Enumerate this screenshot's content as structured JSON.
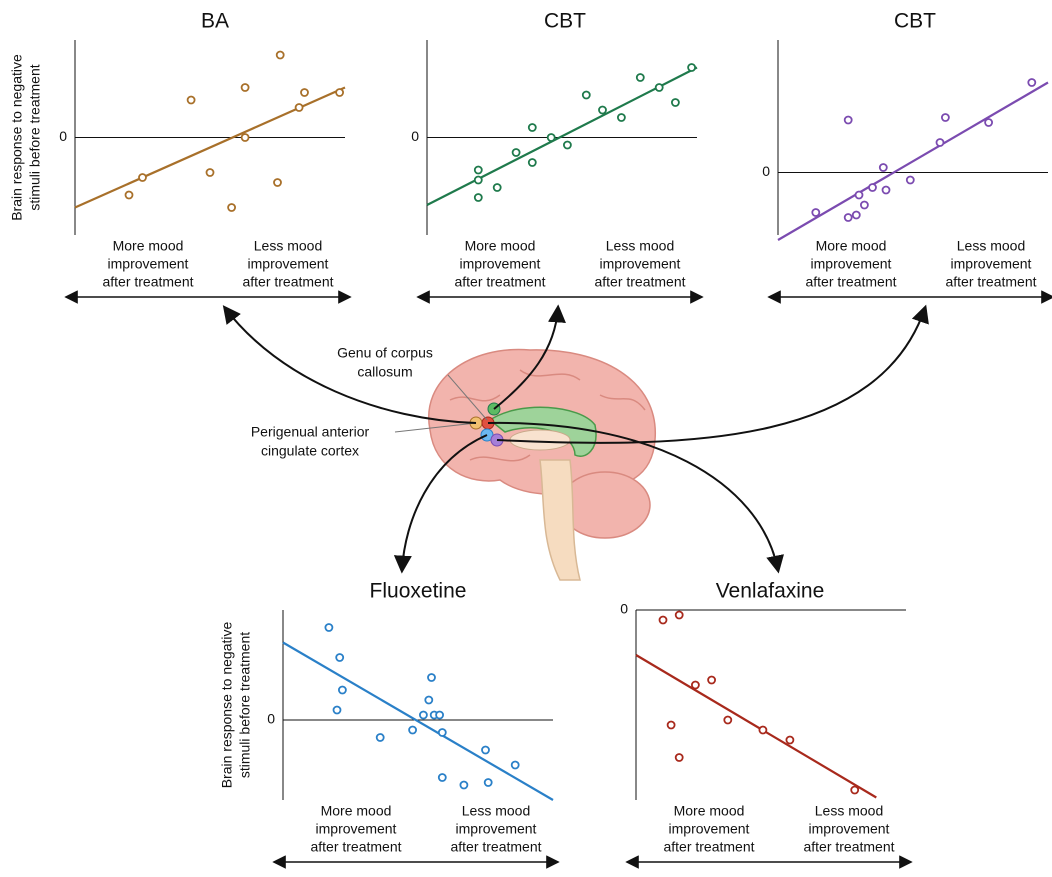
{
  "chart_data": [
    {
      "type": "scatter",
      "title": "BA",
      "color": "#a8702a",
      "ylabel": [
        "Brain response to negative",
        "stimuli before treatment"
      ],
      "x_labels": [
        [
          "More mood",
          "improvement",
          "after treatment"
        ],
        [
          "Less mood",
          "improvement",
          "after treatment"
        ]
      ],
      "xlim": [
        0,
        10
      ],
      "ylim": [
        -3.9,
        3.9
      ],
      "yticks": [
        0
      ],
      "x": [
        2.0,
        2.5,
        4.3,
        5.0,
        5.8,
        6.3,
        6.3,
        7.5,
        7.6,
        8.3,
        8.5,
        9.8
      ],
      "values": [
        -2.3,
        -1.6,
        1.5,
        -1.4,
        -2.8,
        2.0,
        0.0,
        -1.8,
        3.3,
        1.2,
        1.8,
        1.8
      ],
      "fit": {
        "x": [
          0,
          10
        ],
        "y": [
          -2.8,
          2.0
        ]
      }
    },
    {
      "type": "scatter",
      "title": "CBT",
      "color": "#1f7a4c",
      "x_labels": [
        [
          "More mood",
          "improvement",
          "after treatment"
        ],
        [
          "Less mood",
          "improvement",
          "after treatment"
        ]
      ],
      "xlim": [
        0,
        10
      ],
      "ylim": [
        -3.9,
        3.9
      ],
      "yticks": [
        0
      ],
      "x": [
        1.9,
        1.9,
        1.9,
        2.6,
        3.3,
        3.9,
        3.9,
        4.6,
        5.2,
        5.9,
        6.5,
        7.2,
        7.9,
        8.6,
        9.2,
        9.8
      ],
      "values": [
        -1.3,
        -1.7,
        -2.4,
        -2.0,
        -0.6,
        -1.0,
        0.4,
        0.0,
        -0.3,
        1.7,
        1.1,
        0.8,
        2.4,
        2.0,
        1.4,
        2.8
      ],
      "fit": {
        "x": [
          0,
          10
        ],
        "y": [
          -2.7,
          2.8
        ]
      }
    },
    {
      "type": "scatter",
      "title": "CBT",
      "color": "#7b4bb0",
      "x_labels": [
        [
          "More mood",
          "improvement",
          "after treatment"
        ],
        [
          "Less mood",
          "improvement",
          "after treatment"
        ]
      ],
      "xlim": [
        0,
        10
      ],
      "ylim": [
        -2.5,
        5.3
      ],
      "yticks": [
        0
      ],
      "x": [
        1.4,
        2.6,
        2.6,
        2.9,
        3.0,
        3.2,
        3.5,
        3.9,
        4.0,
        4.9,
        6.0,
        6.2,
        7.8,
        9.4
      ],
      "values": [
        -1.6,
        2.1,
        -1.8,
        -1.7,
        -0.9,
        -1.3,
        -0.6,
        0.2,
        -0.7,
        -0.3,
        1.2,
        2.2,
        2.0,
        3.6
      ],
      "fit": {
        "x": [
          0,
          10
        ],
        "y": [
          -2.7,
          3.6
        ]
      }
    },
    {
      "type": "scatter",
      "title": "Fluoxetine",
      "color": "#2a80c8",
      "ylabel": [
        "Brain response to negative",
        "stimuli before treatment"
      ],
      "x_labels": [
        [
          "More mood",
          "improvement",
          "after treatment"
        ],
        [
          "Less mood",
          "improvement",
          "after treatment"
        ]
      ],
      "xlim": [
        0,
        10
      ],
      "ylim": [
        -3.2,
        4.4
      ],
      "yticks": [
        0
      ],
      "x": [
        1.7,
        2.1,
        2.2,
        2.0,
        3.6,
        4.8,
        5.2,
        5.4,
        5.5,
        5.6,
        5.8,
        5.9,
        5.9,
        6.7,
        7.5,
        7.6,
        8.6
      ],
      "values": [
        3.7,
        2.5,
        1.2,
        0.4,
        -0.7,
        -0.4,
        0.2,
        0.8,
        1.7,
        0.2,
        0.2,
        -0.5,
        -2.3,
        -2.6,
        -1.2,
        -2.5,
        -1.8
      ],
      "fit": {
        "x": [
          0,
          10
        ],
        "y": [
          3.1,
          -3.2
        ]
      }
    },
    {
      "type": "scatter",
      "title": "Venlafaxine",
      "color": "#a8291c",
      "x_labels": [
        [
          "More mood",
          "improvement",
          "after treatment"
        ],
        [
          "Less mood",
          "improvement",
          "after treatment"
        ]
      ],
      "xlim": [
        0,
        10
      ],
      "ylim": [
        -7.6,
        0
      ],
      "yticks": [
        0
      ],
      "x": [
        1.0,
        1.6,
        2.2,
        2.8,
        1.3,
        1.6,
        3.4,
        4.7,
        5.7,
        8.1
      ],
      "values": [
        -0.4,
        -0.2,
        -3.0,
        -2.8,
        -4.6,
        -5.9,
        -4.4,
        -4.8,
        -5.2,
        -7.2
      ],
      "fit": {
        "x": [
          0,
          8.9
        ],
        "y": [
          -1.8,
          -7.5
        ]
      }
    }
  ],
  "brain_labels": {
    "genu": [
      "Genu of corpus",
      "callosum"
    ],
    "pacc": [
      "Perigenual anterior",
      "cingulate cortex"
    ]
  }
}
